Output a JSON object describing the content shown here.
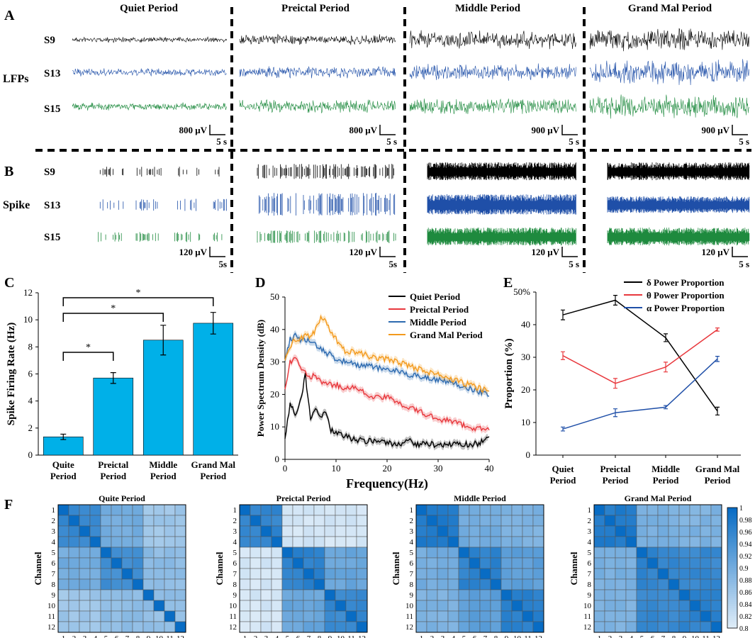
{
  "panel_letters": {
    "a": "A",
    "b": "B",
    "c": "C",
    "d": "D",
    "e": "E",
    "f": "F"
  },
  "periods": [
    "Quiet Period",
    "Preictal Period",
    "Middle Period",
    "Grand Mal Period"
  ],
  "row_labels": {
    "lfp": "LFPs",
    "spike": "Spike"
  },
  "channels": [
    "S9",
    "S13",
    "S15"
  ],
  "colors": {
    "s9": "#000000",
    "s13": "#1f4fa8",
    "s15": "#1e8a3e",
    "bar": "#00b0e8",
    "quiet": "#000000",
    "preictal": "#e8383d",
    "middle": "#2c6ab0",
    "grandmal": "#f39a1d"
  },
  "lfp_scales": [
    {
      "amp": "800 μV",
      "time": "5 s"
    },
    {
      "amp": "800 μV",
      "time": "5 s"
    },
    {
      "amp": "900 μV",
      "time": "5 s"
    },
    {
      "amp": "900 μV",
      "time": "5 s"
    }
  ],
  "spike_scales": [
    {
      "amp": "120 μV",
      "time": "5s"
    },
    {
      "amp": "120 μV",
      "time": "5s"
    },
    {
      "amp": "120 μV",
      "time": "5 s"
    },
    {
      "amp": "120 μV",
      "time": "5 s"
    }
  ],
  "chart_data": [
    {
      "id": "C",
      "type": "bar",
      "categories": [
        "Quite Period",
        "Preictal Period",
        "Middle Period",
        "Grand Mal Period"
      ],
      "category_lines": [
        [
          "Quite",
          "Period"
        ],
        [
          "Preictal",
          "Period"
        ],
        [
          "Middle",
          "Period"
        ],
        [
          "Grand Mal",
          "Period"
        ]
      ],
      "values": [
        1.35,
        5.7,
        8.5,
        9.75
      ],
      "errors": [
        0.2,
        0.4,
        1.1,
        0.8
      ],
      "ylabel": "Spike Firing Rate (Hz)",
      "ylim": [
        0,
        12
      ],
      "yticks": [
        0,
        2,
        4,
        6,
        8,
        10,
        12
      ],
      "significance": [
        {
          "from": 0,
          "to": 1,
          "label": "*"
        },
        {
          "from": 0,
          "to": 2,
          "label": "*"
        },
        {
          "from": 0,
          "to": 3,
          "label": "*"
        }
      ]
    },
    {
      "id": "D",
      "type": "line",
      "xlabel": "Frequency(Hz)",
      "ylabel": "Power Spectrum Density (dB)",
      "xlim": [
        0,
        40
      ],
      "ylim": [
        0,
        50
      ],
      "xticks": [
        0,
        10,
        20,
        30,
        40
      ],
      "yticks": [
        0,
        10,
        20,
        30,
        40,
        50
      ],
      "series": [
        {
          "name": "Quiet Period",
          "key": "quiet",
          "x": [
            0,
            1,
            2,
            3,
            4,
            5,
            6,
            7,
            8,
            9,
            10,
            12,
            14,
            16,
            18,
            20,
            22,
            24,
            26,
            28,
            30,
            32,
            34,
            36,
            38,
            40
          ],
          "values": [
            6,
            17,
            14,
            18,
            26,
            12,
            16,
            13,
            14,
            9,
            8,
            7,
            6,
            5.5,
            6,
            5,
            4.5,
            6,
            4.5,
            5,
            4,
            4.5,
            5,
            4.5,
            5,
            7
          ]
        },
        {
          "name": "Preictal Period",
          "key": "preictal",
          "x": [
            0,
            1,
            2,
            3,
            4,
            5,
            6,
            7,
            8,
            10,
            12,
            14,
            16,
            18,
            20,
            22,
            24,
            26,
            28,
            30,
            32,
            34,
            36,
            38,
            40
          ],
          "values": [
            22,
            30,
            31,
            28,
            27,
            25,
            26,
            24,
            23,
            23,
            22,
            22,
            20,
            19,
            19,
            18,
            16,
            15,
            13.5,
            12.5,
            12,
            11,
            10,
            9.5,
            9
          ]
        },
        {
          "name": "Middle Period",
          "key": "middle",
          "x": [
            0,
            1,
            2,
            3,
            4,
            5,
            6,
            7,
            8,
            10,
            12,
            14,
            16,
            18,
            20,
            22,
            24,
            26,
            28,
            30,
            32,
            34,
            36,
            38,
            40
          ],
          "values": [
            30,
            37,
            38,
            37,
            37,
            36,
            35,
            34,
            33,
            31,
            30,
            29,
            29,
            28,
            28,
            27,
            26,
            26,
            25,
            24.5,
            24,
            23,
            22,
            21,
            19.5
          ]
        },
        {
          "name": "Grand Mal Period",
          "key": "grandmal",
          "x": [
            0,
            1,
            2,
            3,
            4,
            5,
            6,
            7,
            8,
            10,
            12,
            14,
            16,
            18,
            20,
            22,
            24,
            26,
            28,
            30,
            32,
            34,
            36,
            38,
            40
          ],
          "values": [
            31,
            35,
            37,
            37,
            38,
            38,
            40,
            44,
            42,
            37,
            33,
            33,
            32,
            31,
            31,
            30,
            29,
            28,
            27,
            26,
            25,
            24,
            23,
            22,
            21
          ]
        }
      ]
    },
    {
      "id": "E",
      "type": "line",
      "categories": [
        "Quiet Period",
        "Preictal Period",
        "Middle Period",
        "Grand Mal Period"
      ],
      "category_lines": [
        [
          "Quiet",
          "Period"
        ],
        [
          "Preictal",
          "Period"
        ],
        [
          "Middle",
          "Period"
        ],
        [
          "Grand Mal",
          "Period"
        ]
      ],
      "ylabel": "Proportion (%)",
      "ylim": [
        0,
        50
      ],
      "yticks": [
        0,
        10,
        20,
        30,
        40,
        50
      ],
      "ytick_labels": [
        "0",
        "10",
        "20",
        "30",
        "40",
        "50%"
      ],
      "series": [
        {
          "name": "δ Power Proportion",
          "color": "#000000",
          "values": [
            43,
            47.5,
            36,
            13.5
          ],
          "errors": [
            1.5,
            1.5,
            1.2,
            1.2
          ]
        },
        {
          "name": "θ Power Proportion",
          "color": "#e8383d",
          "values": [
            30.5,
            22,
            27,
            38.5
          ],
          "errors": [
            1.2,
            1.5,
            1.5,
            0.5
          ]
        },
        {
          "name": "α Power Proportion",
          "color": "#1f4fa8",
          "values": [
            8,
            13,
            14.7,
            29.5
          ],
          "errors": [
            0.6,
            1.2,
            0.5,
            0.8
          ]
        }
      ]
    },
    {
      "id": "F",
      "type": "heatmap",
      "xlabel": "Channel",
      "ylabel": "Channel",
      "ticks": [
        "1",
        "2",
        "3",
        "4",
        "5",
        "6",
        "7",
        "8",
        "9",
        "10",
        "11",
        "12"
      ],
      "colorbar": {
        "min": 0.8,
        "max": 1,
        "ticks": [
          "1",
          "0.98",
          "0.96",
          "0.94",
          "0.92",
          "0.9",
          "0.88",
          "0.86",
          "0.84",
          "0.82",
          "0.8"
        ]
      },
      "maps": [
        {
          "title": "Quite  Period",
          "groups": [
            [
              0,
              1,
              2,
              3
            ],
            [
              4,
              5,
              6,
              7
            ],
            [
              8,
              9,
              10,
              11
            ]
          ],
          "within": [
            0.955,
            0.945,
            0.87
          ],
          "between": [
            [
              0,
              1,
              0.9
            ],
            [
              0,
              2,
              0.86
            ],
            [
              1,
              2,
              0.875
            ]
          ]
        },
        {
          "title": "Preictal Period",
          "groups": [
            [
              0,
              1,
              2,
              3
            ],
            [
              4,
              5,
              6,
              7
            ],
            [
              8,
              9,
              10,
              11
            ]
          ],
          "within": [
            0.96,
            0.965,
            0.955
          ],
          "between": [
            [
              0,
              1,
              0.81
            ],
            [
              0,
              2,
              0.81
            ],
            [
              1,
              2,
              0.91
            ]
          ]
        },
        {
          "title": "Middle Period",
          "groups": [
            [
              0,
              1,
              2,
              3
            ],
            [
              4,
              5,
              6,
              7
            ],
            [
              8,
              9,
              10,
              11
            ]
          ],
          "within": [
            0.975,
            0.965,
            0.97
          ],
          "between": [
            [
              0,
              1,
              0.9
            ],
            [
              0,
              2,
              0.89
            ],
            [
              1,
              2,
              0.92
            ]
          ]
        },
        {
          "title": "Grand Mal Period",
          "groups": [
            [
              0,
              1,
              2,
              3
            ],
            [
              4,
              5,
              6,
              7
            ],
            [
              8,
              9,
              10,
              11
            ]
          ],
          "within": [
            0.975,
            0.96,
            0.965
          ],
          "between": [
            [
              0,
              1,
              0.895
            ],
            [
              0,
              2,
              0.89
            ],
            [
              1,
              2,
              0.955
            ]
          ]
        }
      ]
    }
  ]
}
